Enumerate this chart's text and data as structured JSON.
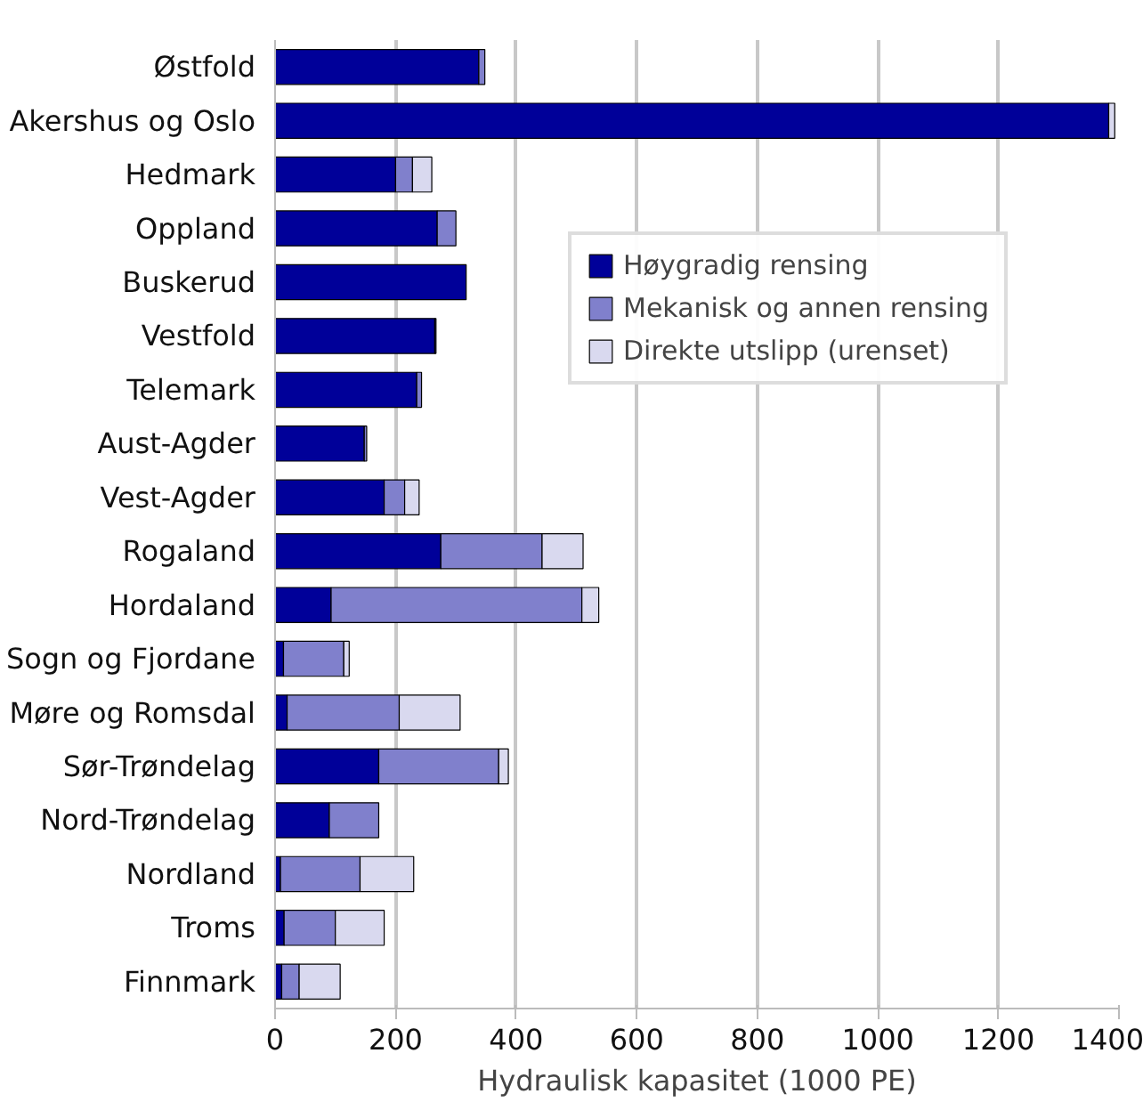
{
  "chart_data": {
    "type": "bar",
    "orientation": "horizontal",
    "stacked": true,
    "xlabel": "Hydraulisk kapasitet (1000 PE)",
    "categories": [
      "Østfold",
      "Akershus og Oslo",
      "Hedmark",
      "Oppland",
      "Buskerud",
      "Vestfold",
      "Telemark",
      "Aust-Agder",
      "Vest-Agder",
      "Rogaland",
      "Hordaland",
      "Sogn og Fjordane",
      "Møre og Romsdal",
      "Sør-Trøndelag",
      "Nord-Trøndelag",
      "Nordland",
      "Troms",
      "Finnmark"
    ],
    "series": [
      {
        "name": "Høygradig rensing",
        "color": "#000099",
        "values": [
          338,
          1383,
          200,
          269,
          317,
          265,
          235,
          148,
          181,
          275,
          93,
          14,
          20,
          172,
          90,
          9,
          15,
          11
        ]
      },
      {
        "name": "Mekanisk og annen rensing",
        "color": "#8080cc",
        "values": [
          10,
          0,
          28,
          31,
          0,
          2,
          8,
          4,
          34,
          168,
          416,
          100,
          186,
          199,
          82,
          132,
          85,
          29
        ]
      },
      {
        "name": "Direkte utslipp (urenset)",
        "color": "#d9d9ef",
        "values": [
          0,
          10,
          32,
          0,
          0,
          0,
          0,
          0,
          24,
          68,
          28,
          9,
          101,
          16,
          0,
          89,
          81,
          68
        ]
      }
    ],
    "xlim": [
      0,
      1400
    ],
    "xticks": [
      0,
      200,
      400,
      600,
      800,
      1000,
      1200,
      1400
    ],
    "grid": "x",
    "legend": "top right"
  }
}
